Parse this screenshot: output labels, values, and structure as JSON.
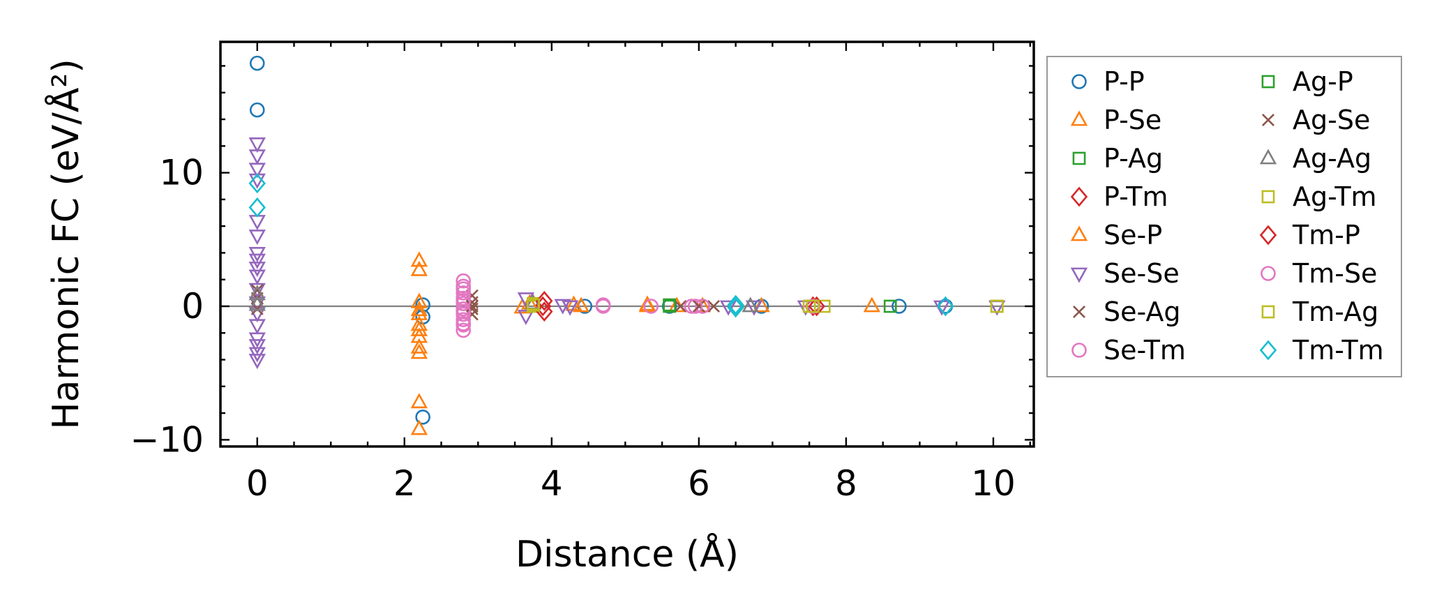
{
  "chart_data": {
    "type": "scatter",
    "title": "",
    "xlabel": "Distance (Å)",
    "ylabel": "Harmonic FC (eV/Å²)",
    "xlim": [
      -0.5,
      10.55
    ],
    "ylim": [
      -10.5,
      19.8
    ],
    "xticks": [
      0,
      2,
      4,
      6,
      8,
      10
    ],
    "yticks": [
      -10,
      0,
      10
    ],
    "xtick_labels": [
      "0",
      "2",
      "4",
      "6",
      "8",
      "10"
    ],
    "ytick_labels": [
      "−10",
      "0",
      "10"
    ],
    "zero_line": true,
    "legend_position": "outside-right",
    "series": [
      {
        "name": "P-P",
        "marker": "circle",
        "color": "#1f77b4",
        "points": [
          [
            0,
            18.2
          ],
          [
            0,
            14.7
          ],
          [
            2.25,
            0.1
          ],
          [
            2.25,
            -0.8
          ],
          [
            2.25,
            -8.3
          ],
          [
            4.45,
            0
          ],
          [
            5.6,
            0
          ],
          [
            6.85,
            0
          ],
          [
            8.72,
            0
          ],
          [
            9.35,
            0
          ]
        ]
      },
      {
        "name": "P-Se",
        "marker": "triangle-up",
        "color": "#ff7f0e",
        "points": [
          [
            2.2,
            3.4
          ],
          [
            2.2,
            2.7
          ],
          [
            2.2,
            -0.6
          ],
          [
            2.2,
            -1.4
          ],
          [
            2.2,
            -2.3
          ],
          [
            2.2,
            -3.1
          ],
          [
            2.2,
            -7.2
          ],
          [
            2.2,
            -9.2
          ],
          [
            3.6,
            -0.1
          ],
          [
            4.4,
            0
          ],
          [
            5.3,
            0
          ],
          [
            5.7,
            0
          ],
          [
            6.05,
            0
          ],
          [
            6.85,
            0
          ],
          [
            8.35,
            0
          ]
        ]
      },
      {
        "name": "P-Ag",
        "marker": "square",
        "color": "#2ca02c",
        "points": [
          [
            5.6,
            0.1
          ],
          [
            8.6,
            0
          ]
        ]
      },
      {
        "name": "P-Tm",
        "marker": "diamond",
        "color": "#d62728",
        "points": [
          [
            3.88,
            0
          ],
          [
            7.55,
            0
          ]
        ]
      },
      {
        "name": "Se-P",
        "marker": "triangle-up",
        "color": "#ff7f0e",
        "points": [
          [
            2.2,
            0.3
          ],
          [
            2.2,
            -0.3
          ],
          [
            2.2,
            -1.8
          ],
          [
            2.2,
            -3.5
          ],
          [
            3.7,
            0.2
          ],
          [
            4.3,
            0.1
          ],
          [
            5.3,
            0.1
          ]
        ]
      },
      {
        "name": "Se-Se",
        "marker": "triangle-down",
        "color": "#9467bd",
        "points": [
          [
            0,
            12.2
          ],
          [
            0,
            11.3
          ],
          [
            0,
            10.3
          ],
          [
            0,
            9.5
          ],
          [
            0,
            6.4
          ],
          [
            0,
            5.3
          ],
          [
            0,
            4.0
          ],
          [
            0,
            3.5
          ],
          [
            0,
            2.9
          ],
          [
            0,
            2.3
          ],
          [
            0,
            1.3
          ],
          [
            0,
            0.3
          ],
          [
            0,
            -0.5
          ],
          [
            0,
            -1.4
          ],
          [
            0,
            -2.4
          ],
          [
            0,
            -2.9
          ],
          [
            0,
            -3.5
          ],
          [
            0,
            -4.0
          ],
          [
            3.65,
            0.6
          ],
          [
            3.65,
            -0.7
          ],
          [
            4.15,
            0.1
          ],
          [
            4.25,
            0
          ],
          [
            6.4,
            0
          ],
          [
            6.75,
            0
          ],
          [
            7.45,
            0
          ],
          [
            9.3,
            0
          ],
          [
            10.05,
            0
          ]
        ]
      },
      {
        "name": "Se-Ag",
        "marker": "x",
        "color": "#8c564b",
        "points": [
          [
            0,
            1.2
          ],
          [
            0,
            0.6
          ],
          [
            2.92,
            0.8
          ],
          [
            2.92,
            0.3
          ],
          [
            2.92,
            -0.2
          ],
          [
            2.92,
            -0.6
          ],
          [
            5.75,
            0
          ],
          [
            6.2,
            0
          ]
        ]
      },
      {
        "name": "Se-Tm",
        "marker": "circle",
        "color": "#e377c2",
        "points": [
          [
            2.8,
            1.9
          ],
          [
            2.8,
            1.5
          ],
          [
            2.8,
            1.0
          ],
          [
            2.8,
            0.6
          ],
          [
            2.8,
            0.2
          ],
          [
            2.8,
            -0.2
          ],
          [
            2.8,
            -0.6
          ],
          [
            2.8,
            -1.0
          ],
          [
            2.8,
            -1.4
          ],
          [
            2.8,
            -1.8
          ],
          [
            4.7,
            0
          ],
          [
            5.35,
            0
          ],
          [
            5.9,
            0
          ],
          [
            6.05,
            0
          ],
          [
            7.55,
            0
          ]
        ]
      },
      {
        "name": "Ag-P",
        "marker": "square",
        "color": "#2ca02c",
        "points": [
          [
            5.6,
            0
          ]
        ]
      },
      {
        "name": "Ag-Se",
        "marker": "x",
        "color": "#8c564b",
        "points": [
          [
            0,
            -0.2
          ],
          [
            2.92,
            0
          ],
          [
            6.0,
            0
          ]
        ]
      },
      {
        "name": "Ag-Ag",
        "marker": "triangle-up",
        "color": "#7f7f7f",
        "points": [
          [
            0,
            0.9
          ],
          [
            0,
            0.1
          ],
          [
            3.75,
            0.2
          ],
          [
            6.7,
            0
          ]
        ]
      },
      {
        "name": "Ag-Tm",
        "marker": "square",
        "color": "#bcbd22",
        "points": [
          [
            3.75,
            0.2
          ],
          [
            3.75,
            0
          ],
          [
            7.5,
            0
          ],
          [
            7.7,
            0
          ],
          [
            10.05,
            0
          ]
        ]
      },
      {
        "name": "Tm-P",
        "marker": "diamond",
        "color": "#d62728",
        "points": [
          [
            3.9,
            0.4
          ],
          [
            3.9,
            -0.4
          ],
          [
            7.6,
            0
          ]
        ]
      },
      {
        "name": "Tm-Se",
        "marker": "circle",
        "color": "#e377c2",
        "points": [
          [
            2.8,
            1.3
          ],
          [
            2.8,
            0.4
          ],
          [
            2.8,
            -0.4
          ],
          [
            2.8,
            -1.3
          ],
          [
            4.7,
            0.1
          ],
          [
            5.95,
            0
          ],
          [
            7.55,
            0
          ]
        ]
      },
      {
        "name": "Tm-Ag",
        "marker": "square",
        "color": "#bcbd22",
        "points": [
          [
            3.75,
            0.1
          ],
          [
            7.55,
            0
          ],
          [
            10.05,
            0
          ]
        ]
      },
      {
        "name": "Tm-Tm",
        "marker": "diamond",
        "color": "#17becf",
        "points": [
          [
            0,
            9.2
          ],
          [
            0,
            7.4
          ],
          [
            6.5,
            0.1
          ],
          [
            6.5,
            -0.1
          ],
          [
            9.35,
            0
          ]
        ]
      }
    ]
  }
}
